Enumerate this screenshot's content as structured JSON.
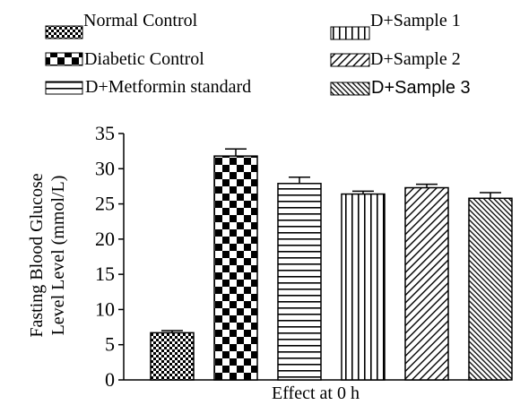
{
  "chart_data": {
    "type": "bar",
    "categories": [
      "Normal Control",
      "Diabetic Control",
      "D+Metformin standard",
      "D+Sample 1",
      "D+Sample 2",
      "D+Sample 3"
    ],
    "values": [
      6.7,
      31.8,
      27.9,
      26.4,
      27.3,
      25.8
    ],
    "errors": [
      0.3,
      1.0,
      0.9,
      0.4,
      0.5,
      0.8
    ],
    "xlabel": "Effect at 0 h",
    "ylabel_line1": "Fasting Blood Glucose",
    "ylabel_line2": "Level  Level (mmol/L)",
    "ylim": [
      0,
      35
    ],
    "yticks": [
      "0",
      "5",
      "10",
      "15",
      "20",
      "25",
      "30",
      "35"
    ],
    "legend": [
      "Normal Control",
      "Diabetic Control",
      "D+Metformin standard",
      "D+Sample 1",
      "D+Sample 2",
      "D+Sample 3"
    ],
    "legend_placement": "top",
    "grid": false,
    "colors": {
      "ink": "#000000",
      "background": "#ffffff"
    }
  }
}
